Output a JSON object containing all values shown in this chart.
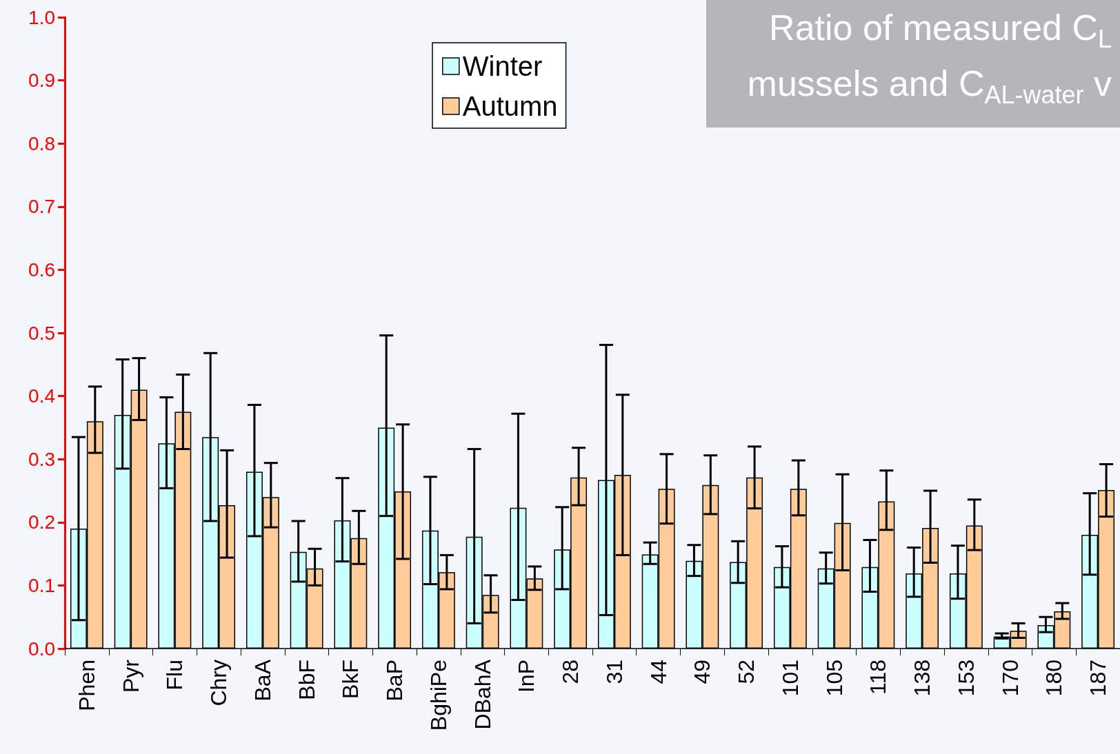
{
  "chart_data": {
    "type": "bar",
    "title": "Ratio of measured C$_{L}$\nmussels and C$_{AL-water}$ v",
    "categories": [
      "Phen",
      "Pyr",
      "Flu",
      "Chry",
      "BaA",
      "BbF",
      "BkF",
      "BaP",
      "BghiPe",
      "DBahA",
      "InP",
      "28",
      "31",
      "44",
      "49",
      "52",
      "101",
      "105",
      "118",
      "138",
      "153",
      "170",
      "180",
      "187"
    ],
    "series": [
      {
        "name": "Winter",
        "color": "#ccffff",
        "values": [
          0.19,
          0.37,
          0.325,
          0.335,
          0.28,
          0.153,
          0.203,
          0.35,
          0.187,
          0.177,
          0.223,
          0.157,
          0.267,
          0.149,
          0.139,
          0.137,
          0.129,
          0.127,
          0.129,
          0.119,
          0.119,
          0.019,
          0.037,
          0.18
        ],
        "errors": [
          [
            0.045,
            0.335
          ],
          [
            0.285,
            0.458
          ],
          [
            0.254,
            0.398
          ],
          [
            0.202,
            0.468
          ],
          [
            0.178,
            0.386
          ],
          [
            0.106,
            0.202
          ],
          [
            0.138,
            0.27
          ],
          [
            0.21,
            0.496
          ],
          [
            0.102,
            0.272
          ],
          [
            0.04,
            0.316
          ],
          [
            0.077,
            0.372
          ],
          [
            0.094,
            0.224
          ],
          [
            0.053,
            0.481
          ],
          [
            0.134,
            0.168
          ],
          [
            0.115,
            0.164
          ],
          [
            0.104,
            0.17
          ],
          [
            0.097,
            0.162
          ],
          [
            0.103,
            0.152
          ],
          [
            0.09,
            0.172
          ],
          [
            0.082,
            0.16
          ],
          [
            0.079,
            0.163
          ],
          [
            0.016,
            0.024
          ],
          [
            0.026,
            0.05
          ],
          [
            0.117,
            0.246
          ]
        ]
      },
      {
        "name": "Autumn",
        "color": "#ffcc99",
        "values": [
          0.36,
          0.41,
          0.375,
          0.227,
          0.24,
          0.127,
          0.175,
          0.249,
          0.121,
          0.085,
          0.111,
          0.271,
          0.275,
          0.253,
          0.259,
          0.271,
          0.253,
          0.199,
          0.233,
          0.191,
          0.195,
          0.028,
          0.059,
          0.251
        ],
        "errors": [
          [
            0.31,
            0.415
          ],
          [
            0.362,
            0.46
          ],
          [
            0.316,
            0.434
          ],
          [
            0.144,
            0.314
          ],
          [
            0.192,
            0.294
          ],
          [
            0.1,
            0.158
          ],
          [
            0.134,
            0.218
          ],
          [
            0.142,
            0.355
          ],
          [
            0.094,
            0.148
          ],
          [
            0.057,
            0.116
          ],
          [
            0.093,
            0.13
          ],
          [
            0.227,
            0.318
          ],
          [
            0.148,
            0.402
          ],
          [
            0.198,
            0.308
          ],
          [
            0.213,
            0.306
          ],
          [
            0.222,
            0.32
          ],
          [
            0.211,
            0.298
          ],
          [
            0.124,
            0.276
          ],
          [
            0.188,
            0.282
          ],
          [
            0.136,
            0.25
          ],
          [
            0.156,
            0.236
          ],
          [
            0.017,
            0.04
          ],
          [
            0.047,
            0.072
          ],
          [
            0.209,
            0.292
          ]
        ]
      }
    ],
    "ylim": [
      0,
      1
    ],
    "yticks": [
      {
        "value": 0,
        "label": "0.0"
      },
      0.1,
      0.2,
      0.3,
      0.4,
      0.5,
      0.6,
      0.7,
      0.8,
      0.9,
      {
        "value": 1,
        "label": "1.0"
      }
    ],
    "grid": false,
    "legend": "top"
  }
}
